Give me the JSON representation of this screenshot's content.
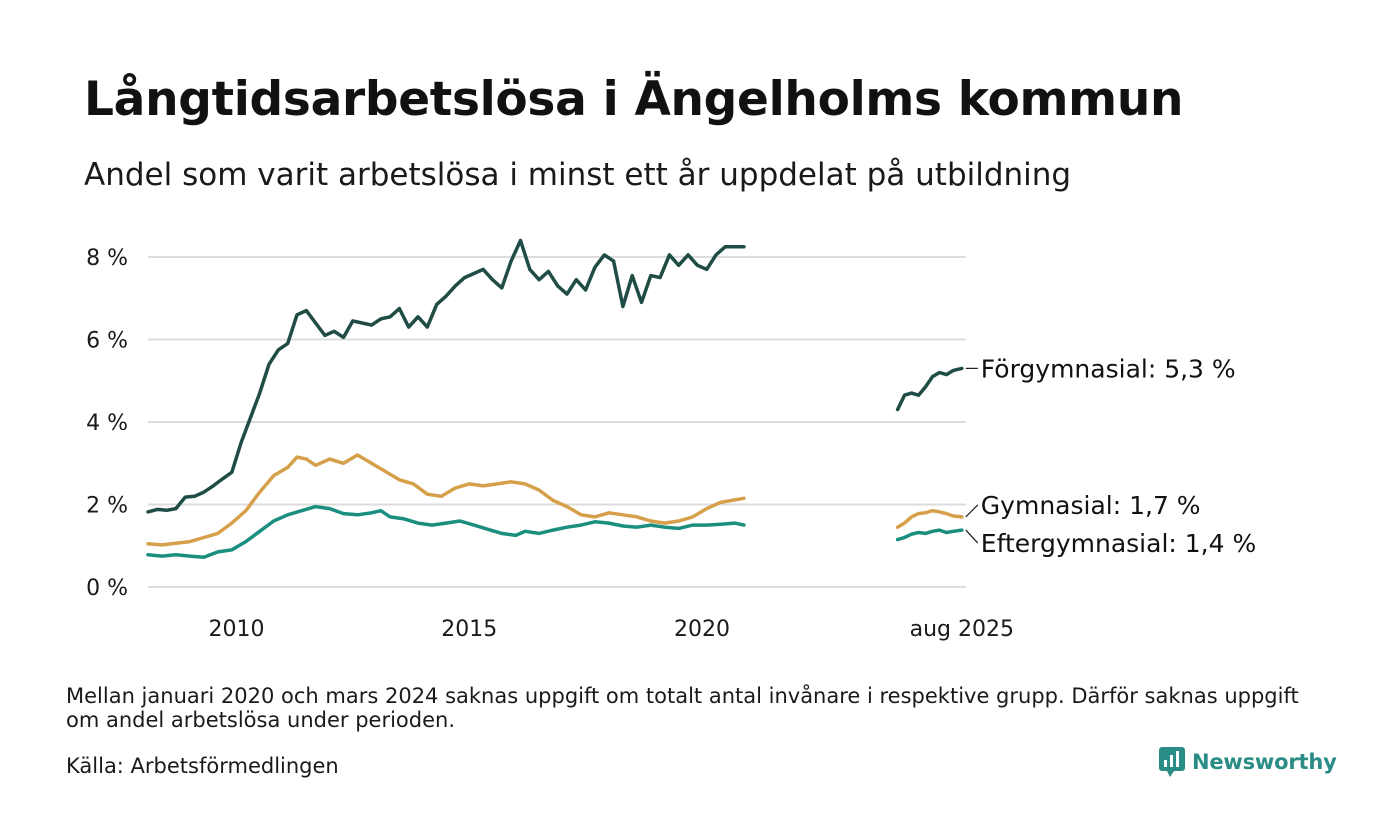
{
  "title": "Långtidsarbetslösa i Ängelholms kommun",
  "subtitle": "Andel som varit arbetslösa i minst ett år uppdelat på utbildning",
  "note": "Mellan januari 2020 och mars 2024 saknas uppgift om totalt antal invånare i respektive grupp. Därför saknas uppgift om andel arbetslösa under perioden.",
  "source": "Källa: Arbetsförmedlingen",
  "brand": "Newsworthy",
  "chart_data": {
    "type": "line",
    "title": "Långtidsarbetslösa i Ängelholms kommun",
    "subtitle": "Andel som varit arbetslösa i minst ett år uppdelat på utbildning",
    "ylim": [
      0,
      8.5
    ],
    "yticks": [
      0,
      2,
      4,
      6,
      8
    ],
    "ytick_labels": [
      "0 %",
      "2 %",
      "4 %",
      "6 %",
      "8 %"
    ],
    "xlim": [
      2008.1,
      2025.67
    ],
    "xticks": [
      2010,
      2015,
      2020,
      2025.58
    ],
    "xtick_labels": [
      "2010",
      "2015",
      "2020",
      "aug 2025"
    ],
    "grid": true,
    "legend": "direct labels at line ends",
    "series": [
      {
        "name": "Förgymnasial",
        "label": "Förgymnasial: 5,3 %",
        "color": "#1f4d45",
        "segments": [
          [
            [
              2008.1,
              1.82
            ],
            [
              2008.3,
              1.88
            ],
            [
              2008.5,
              1.86
            ],
            [
              2008.7,
              1.9
            ],
            [
              2008.9,
              2.18
            ],
            [
              2009.1,
              2.2
            ],
            [
              2009.3,
              2.3
            ],
            [
              2009.5,
              2.45
            ],
            [
              2009.7,
              2.62
            ],
            [
              2009.9,
              2.78
            ],
            [
              2010.1,
              3.5
            ],
            [
              2010.3,
              4.1
            ],
            [
              2010.5,
              4.7
            ],
            [
              2010.7,
              5.4
            ],
            [
              2010.9,
              5.75
            ],
            [
              2011.1,
              5.9
            ],
            [
              2011.3,
              6.6
            ],
            [
              2011.5,
              6.7
            ],
            [
              2011.7,
              6.4
            ],
            [
              2011.9,
              6.1
            ],
            [
              2012.1,
              6.2
            ],
            [
              2012.3,
              6.05
            ],
            [
              2012.5,
              6.45
            ],
            [
              2012.7,
              6.4
            ],
            [
              2012.9,
              6.35
            ],
            [
              2013.1,
              6.5
            ],
            [
              2013.3,
              6.55
            ],
            [
              2013.5,
              6.75
            ],
            [
              2013.7,
              6.3
            ],
            [
              2013.9,
              6.55
            ],
            [
              2014.1,
              6.3
            ],
            [
              2014.3,
              6.85
            ],
            [
              2014.5,
              7.05
            ],
            [
              2014.7,
              7.3
            ],
            [
              2014.9,
              7.5
            ],
            [
              2015.1,
              7.6
            ],
            [
              2015.3,
              7.7
            ],
            [
              2015.5,
              7.45
            ],
            [
              2015.7,
              7.25
            ],
            [
              2015.9,
              7.9
            ],
            [
              2016.1,
              8.4
            ],
            [
              2016.3,
              7.7
            ],
            [
              2016.5,
              7.45
            ],
            [
              2016.7,
              7.65
            ],
            [
              2016.9,
              7.3
            ],
            [
              2017.1,
              7.1
            ],
            [
              2017.3,
              7.45
            ],
            [
              2017.5,
              7.2
            ],
            [
              2017.7,
              7.75
            ],
            [
              2017.9,
              8.05
            ],
            [
              2018.1,
              7.9
            ],
            [
              2018.3,
              6.8
            ],
            [
              2018.5,
              7.55
            ],
            [
              2018.7,
              6.9
            ],
            [
              2018.9,
              7.55
            ],
            [
              2019.1,
              7.5
            ],
            [
              2019.3,
              8.05
            ],
            [
              2019.5,
              7.8
            ],
            [
              2019.7,
              8.05
            ],
            [
              2019.9,
              7.8
            ],
            [
              2020.1,
              7.7
            ],
            [
              2020.3,
              8.05
            ],
            [
              2020.5,
              8.25
            ],
            [
              2020.9,
              8.25
            ]
          ],
          [
            [
              2024.2,
              4.3
            ],
            [
              2024.35,
              4.65
            ],
            [
              2024.5,
              4.7
            ],
            [
              2024.65,
              4.65
            ],
            [
              2024.8,
              4.85
            ],
            [
              2024.95,
              5.1
            ],
            [
              2025.1,
              5.2
            ],
            [
              2025.25,
              5.15
            ],
            [
              2025.4,
              5.25
            ],
            [
              2025.58,
              5.3
            ]
          ]
        ]
      },
      {
        "name": "Gymnasial",
        "label": "Gymnasial: 1,7 %",
        "color": "#d6a04a",
        "segments": [
          [
            [
              2008.1,
              1.05
            ],
            [
              2008.4,
              1.02
            ],
            [
              2008.7,
              1.06
            ],
            [
              2009.0,
              1.1
            ],
            [
              2009.3,
              1.2
            ],
            [
              2009.6,
              1.3
            ],
            [
              2009.9,
              1.55
            ],
            [
              2010.2,
              1.85
            ],
            [
              2010.5,
              2.3
            ],
            [
              2010.8,
              2.7
            ],
            [
              2011.1,
              2.9
            ],
            [
              2011.3,
              3.15
            ],
            [
              2011.5,
              3.1
            ],
            [
              2011.7,
              2.95
            ],
            [
              2012.0,
              3.1
            ],
            [
              2012.3,
              3.0
            ],
            [
              2012.6,
              3.2
            ],
            [
              2012.9,
              3.0
            ],
            [
              2013.2,
              2.8
            ],
            [
              2013.5,
              2.6
            ],
            [
              2013.8,
              2.5
            ],
            [
              2014.1,
              2.25
            ],
            [
              2014.4,
              2.2
            ],
            [
              2014.7,
              2.4
            ],
            [
              2015.0,
              2.5
            ],
            [
              2015.3,
              2.45
            ],
            [
              2015.6,
              2.5
            ],
            [
              2015.9,
              2.55
            ],
            [
              2016.2,
              2.5
            ],
            [
              2016.5,
              2.35
            ],
            [
              2016.8,
              2.1
            ],
            [
              2017.1,
              1.95
            ],
            [
              2017.4,
              1.75
            ],
            [
              2017.7,
              1.7
            ],
            [
              2018.0,
              1.8
            ],
            [
              2018.3,
              1.75
            ],
            [
              2018.6,
              1.7
            ],
            [
              2018.9,
              1.6
            ],
            [
              2019.2,
              1.55
            ],
            [
              2019.5,
              1.6
            ],
            [
              2019.8,
              1.7
            ],
            [
              2020.1,
              1.9
            ],
            [
              2020.4,
              2.05
            ],
            [
              2020.9,
              2.15
            ]
          ],
          [
            [
              2024.2,
              1.45
            ],
            [
              2024.35,
              1.55
            ],
            [
              2024.5,
              1.7
            ],
            [
              2024.65,
              1.78
            ],
            [
              2024.8,
              1.8
            ],
            [
              2024.95,
              1.85
            ],
            [
              2025.1,
              1.82
            ],
            [
              2025.25,
              1.78
            ],
            [
              2025.4,
              1.72
            ],
            [
              2025.58,
              1.7
            ]
          ]
        ]
      },
      {
        "name": "Eftergymnasial",
        "label": "Eftergymnasial: 1,4 %",
        "color": "#1a8f80",
        "segments": [
          [
            [
              2008.1,
              0.78
            ],
            [
              2008.4,
              0.75
            ],
            [
              2008.7,
              0.78
            ],
            [
              2009.0,
              0.75
            ],
            [
              2009.3,
              0.72
            ],
            [
              2009.6,
              0.85
            ],
            [
              2009.9,
              0.9
            ],
            [
              2010.2,
              1.1
            ],
            [
              2010.5,
              1.35
            ],
            [
              2010.8,
              1.6
            ],
            [
              2011.1,
              1.75
            ],
            [
              2011.4,
              1.85
            ],
            [
              2011.7,
              1.95
            ],
            [
              2012.0,
              1.9
            ],
            [
              2012.3,
              1.78
            ],
            [
              2012.6,
              1.75
            ],
            [
              2012.9,
              1.8
            ],
            [
              2013.1,
              1.85
            ],
            [
              2013.3,
              1.7
            ],
            [
              2013.6,
              1.65
            ],
            [
              2013.9,
              1.55
            ],
            [
              2014.2,
              1.5
            ],
            [
              2014.5,
              1.55
            ],
            [
              2014.8,
              1.6
            ],
            [
              2015.1,
              1.5
            ],
            [
              2015.4,
              1.4
            ],
            [
              2015.7,
              1.3
            ],
            [
              2016.0,
              1.25
            ],
            [
              2016.2,
              1.35
            ],
            [
              2016.5,
              1.3
            ],
            [
              2016.8,
              1.38
            ],
            [
              2017.1,
              1.45
            ],
            [
              2017.4,
              1.5
            ],
            [
              2017.7,
              1.58
            ],
            [
              2018.0,
              1.55
            ],
            [
              2018.3,
              1.48
            ],
            [
              2018.6,
              1.45
            ],
            [
              2018.9,
              1.5
            ],
            [
              2019.2,
              1.45
            ],
            [
              2019.5,
              1.42
            ],
            [
              2019.8,
              1.5
            ],
            [
              2020.1,
              1.5
            ],
            [
              2020.4,
              1.52
            ],
            [
              2020.7,
              1.55
            ],
            [
              2020.9,
              1.5
            ]
          ],
          [
            [
              2024.2,
              1.15
            ],
            [
              2024.35,
              1.2
            ],
            [
              2024.5,
              1.28
            ],
            [
              2024.65,
              1.32
            ],
            [
              2024.8,
              1.3
            ],
            [
              2024.95,
              1.35
            ],
            [
              2025.1,
              1.38
            ],
            [
              2025.25,
              1.32
            ],
            [
              2025.4,
              1.35
            ],
            [
              2025.58,
              1.38
            ]
          ]
        ]
      }
    ]
  }
}
